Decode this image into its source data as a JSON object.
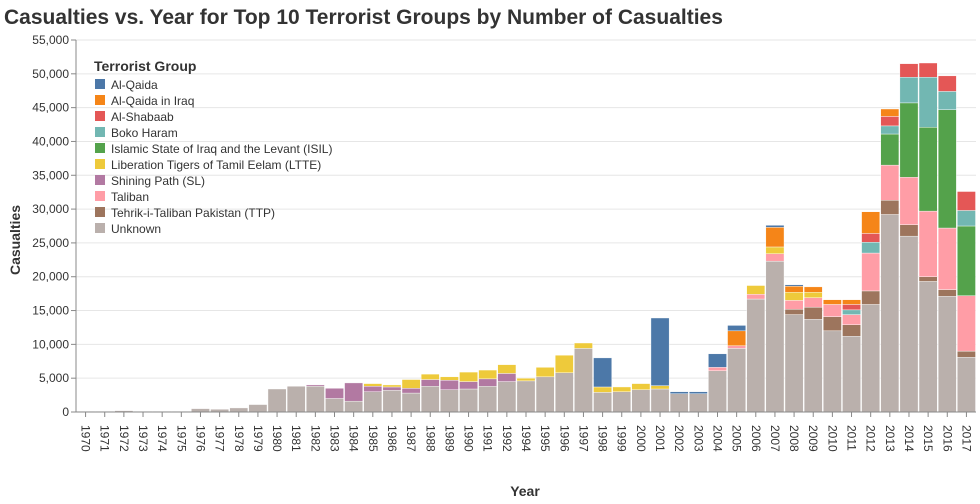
{
  "chart_data": {
    "type": "bar",
    "stacked": true,
    "title": "Casualties vs. Year for Top 10 Terrorist Groups by Number of Casualties",
    "xlabel": "Year",
    "ylabel": "Casualties",
    "ylim": [
      0,
      55000
    ],
    "yticks": [
      0,
      5000,
      10000,
      15000,
      20000,
      25000,
      30000,
      35000,
      40000,
      45000,
      50000,
      55000
    ],
    "ytick_labels": [
      "0",
      "5,000",
      "10,000",
      "15,000",
      "20,000",
      "25,000",
      "30,000",
      "35,000",
      "40,000",
      "45,000",
      "50,000",
      "55,000"
    ],
    "grid": true,
    "legend_title": "Terrorist Group",
    "legend_position": "top-left",
    "categories": [
      "1970",
      "1971",
      "1972",
      "1973",
      "1974",
      "1975",
      "1976",
      "1977",
      "1978",
      "1979",
      "1980",
      "1981",
      "1982",
      "1983",
      "1984",
      "1985",
      "1986",
      "1987",
      "1988",
      "1989",
      "1990",
      "1991",
      "1992",
      "1994",
      "1995",
      "1996",
      "1997",
      "1998",
      "1999",
      "2000",
      "2001",
      "2002",
      "2003",
      "2004",
      "2005",
      "2006",
      "2007",
      "2008",
      "2009",
      "2010",
      "2011",
      "2012",
      "2013",
      "2014",
      "2015",
      "2016",
      "2017"
    ],
    "stack_order": [
      "Unknown",
      "Tehrik-i-Taliban Pakistan (TTP)",
      "Taliban",
      "Shining Path (SL)",
      "Liberation Tigers of Tamil Eelam (LTTE)",
      "Islamic State of Iraq and the Levant (ISIL)",
      "Boko Haram",
      "Al-Shabaab",
      "Al-Qaida in Iraq",
      "Al-Qaida"
    ],
    "series": [
      {
        "name": "Al-Qaida",
        "color": "#4c78a8",
        "values": [
          0,
          0,
          0,
          0,
          0,
          0,
          0,
          0,
          0,
          0,
          0,
          0,
          0,
          0,
          0,
          0,
          0,
          0,
          0,
          0,
          0,
          0,
          0,
          0,
          0,
          0,
          0,
          4300,
          0,
          0,
          10000,
          300,
          300,
          2000,
          800,
          0,
          300,
          200,
          0,
          0,
          0,
          0,
          0,
          0,
          0,
          0,
          0
        ]
      },
      {
        "name": "Al-Qaida in Iraq",
        "color": "#f58518",
        "values": [
          0,
          0,
          0,
          0,
          0,
          0,
          0,
          0,
          0,
          0,
          0,
          0,
          0,
          0,
          0,
          0,
          0,
          0,
          0,
          0,
          0,
          0,
          0,
          0,
          0,
          0,
          0,
          0,
          0,
          0,
          0,
          0,
          0,
          0,
          2200,
          0,
          2900,
          900,
          800,
          700,
          700,
          3200,
          1100,
          0,
          0,
          0,
          0
        ]
      },
      {
        "name": "Al-Shabaab",
        "color": "#e45756",
        "values": [
          0,
          0,
          0,
          0,
          0,
          0,
          0,
          0,
          0,
          0,
          0,
          0,
          0,
          0,
          0,
          0,
          0,
          0,
          0,
          0,
          0,
          0,
          0,
          0,
          0,
          0,
          0,
          0,
          0,
          0,
          0,
          0,
          0,
          0,
          0,
          0,
          0,
          0,
          0,
          0,
          800,
          1300,
          1400,
          2000,
          2100,
          2300,
          2800
        ]
      },
      {
        "name": "Boko Haram",
        "color": "#72b7b2",
        "values": [
          0,
          0,
          0,
          0,
          0,
          0,
          0,
          0,
          0,
          0,
          0,
          0,
          0,
          0,
          0,
          0,
          0,
          0,
          0,
          0,
          0,
          0,
          0,
          0,
          0,
          0,
          0,
          0,
          0,
          0,
          0,
          0,
          0,
          0,
          0,
          0,
          0,
          0,
          0,
          0,
          700,
          1600,
          1200,
          3800,
          7400,
          2700,
          2300
        ]
      },
      {
        "name": "Islamic State of Iraq and the Levant (ISIL)",
        "color": "#54a24b",
        "values": [
          0,
          0,
          0,
          0,
          0,
          0,
          0,
          0,
          0,
          0,
          0,
          0,
          0,
          0,
          0,
          0,
          0,
          0,
          0,
          0,
          0,
          0,
          0,
          0,
          0,
          0,
          0,
          0,
          0,
          0,
          0,
          0,
          0,
          0,
          0,
          0,
          0,
          0,
          0,
          0,
          0,
          0,
          4600,
          11000,
          12400,
          17500,
          10300
        ]
      },
      {
        "name": "Liberation Tigers of Tamil Eelam (LTTE)",
        "color": "#eeca3b",
        "values": [
          0,
          0,
          0,
          0,
          0,
          0,
          0,
          0,
          0,
          0,
          0,
          0,
          0,
          0,
          0,
          400,
          300,
          1300,
          800,
          500,
          1400,
          1300,
          1300,
          400,
          1400,
          2600,
          800,
          800,
          700,
          900,
          500,
          0,
          0,
          0,
          0,
          1300,
          1000,
          1200,
          800,
          0,
          0,
          0,
          0,
          0,
          0,
          0,
          0
        ]
      },
      {
        "name": "Shining Path (SL)",
        "color": "#b279a2",
        "values": [
          0,
          0,
          0,
          0,
          0,
          0,
          0,
          0,
          0,
          0,
          0,
          0,
          200,
          1500,
          2700,
          800,
          500,
          700,
          1000,
          1400,
          1100,
          1100,
          1200,
          0,
          0,
          0,
          0,
          0,
          0,
          0,
          0,
          0,
          0,
          0,
          0,
          0,
          0,
          0,
          0,
          0,
          0,
          0,
          0,
          0,
          0,
          0,
          0
        ]
      },
      {
        "name": "Taliban",
        "color": "#ff9da6",
        "values": [
          0,
          0,
          0,
          0,
          0,
          0,
          0,
          0,
          0,
          0,
          0,
          0,
          0,
          0,
          0,
          0,
          0,
          0,
          0,
          0,
          0,
          0,
          0,
          0,
          0,
          0,
          0,
          0,
          0,
          0,
          0,
          0,
          0,
          500,
          400,
          700,
          1100,
          1300,
          1400,
          1800,
          1500,
          5600,
          5200,
          7000,
          9700,
          9100,
          8200
        ]
      },
      {
        "name": "Tehrik-i-Taliban Pakistan (TTP)",
        "color": "#9d755d",
        "values": [
          0,
          0,
          0,
          0,
          0,
          0,
          0,
          0,
          0,
          0,
          0,
          0,
          0,
          0,
          0,
          0,
          0,
          0,
          0,
          0,
          0,
          0,
          0,
          0,
          0,
          0,
          0,
          0,
          0,
          0,
          0,
          0,
          0,
          0,
          0,
          0,
          0,
          800,
          1800,
          2100,
          1700,
          2000,
          2100,
          1700,
          700,
          1000,
          900
        ]
      },
      {
        "name": "Unknown",
        "color": "#bab0ac",
        "values": [
          100,
          100,
          200,
          100,
          100,
          100,
          500,
          400,
          600,
          1100,
          3400,
          3800,
          3800,
          2000,
          1600,
          3000,
          3200,
          2800,
          3800,
          3300,
          3400,
          3800,
          4500,
          4600,
          5200,
          5800,
          9400,
          2900,
          3000,
          3300,
          3400,
          2700,
          2700,
          6100,
          9400,
          16700,
          22300,
          14400,
          13700,
          12000,
          11200,
          15900,
          29200,
          26000,
          19300,
          17100,
          8100
        ]
      }
    ]
  }
}
